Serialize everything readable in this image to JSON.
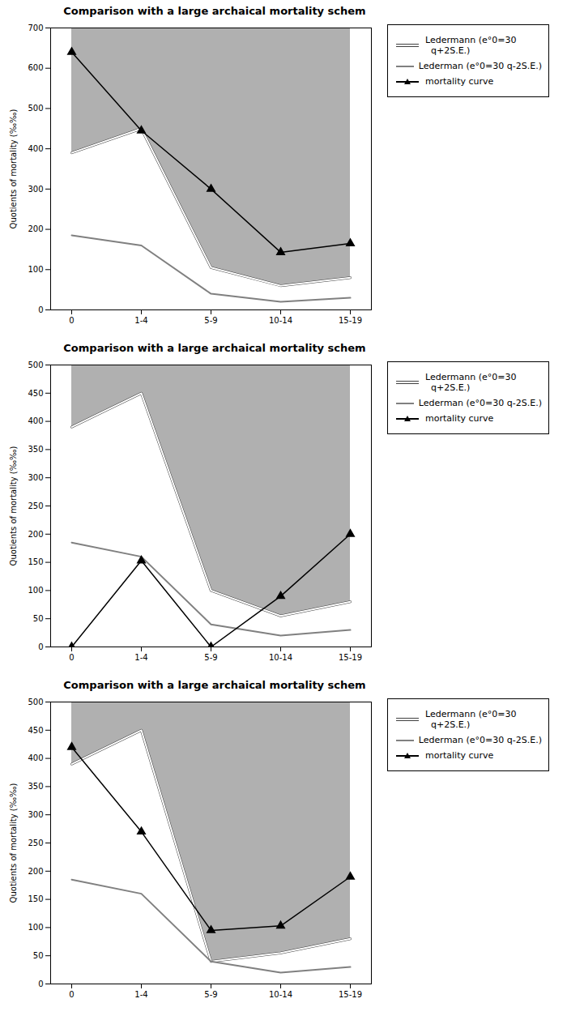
{
  "chart_data": [
    {
      "type": "line",
      "title": "Comparison with a large archaical mortality schem",
      "ylabel": "Quotients of mortality (‰‰)",
      "categories": [
        "0",
        "1-4",
        "5-9",
        "10-14",
        "15-19"
      ],
      "ylim": [
        0,
        700
      ],
      "yticks": [
        0,
        100,
        200,
        300,
        400,
        500,
        600,
        700
      ],
      "grid": false,
      "legend": "right",
      "color": "#b0b0b0",
      "series": [
        {
          "name": "Ledermann (e°0=30\n  q+2S.E.)",
          "type": "area",
          "color": "#ffffff",
          "values": [
            390,
            450,
            105,
            60,
            80
          ]
        },
        {
          "name": "Lederman (e°0=30 q-2S.E.)",
          "type": "line",
          "color": "#808080",
          "values": [
            185,
            160,
            40,
            20,
            30
          ]
        },
        {
          "name": "mortality curve",
          "type": "line",
          "color": "#000000",
          "marker": "triangle",
          "values": [
            640,
            445,
            300,
            143,
            165
          ]
        }
      ]
    },
    {
      "type": "line",
      "title": "Comparison with a large archaical mortality schem",
      "ylabel": "Quotients of mortality (‰‰)",
      "categories": [
        "0",
        "1-4",
        "5-9",
        "10-14",
        "15-19"
      ],
      "ylim": [
        0,
        500
      ],
      "yticks": [
        0,
        50,
        100,
        150,
        200,
        250,
        300,
        350,
        400,
        450,
        500
      ],
      "grid": false,
      "legend": "right",
      "color": "#b0b0b0",
      "series": [
        {
          "name": "Ledermann (e°0=30\n  q+2S.E.)",
          "type": "area",
          "color": "#ffffff",
          "values": [
            390,
            450,
            100,
            55,
            80
          ]
        },
        {
          "name": "Lederman (e°0=30 q-2S.E.)",
          "type": "line",
          "color": "#808080",
          "values": [
            185,
            160,
            40,
            20,
            30
          ]
        },
        {
          "name": "mortality curve",
          "type": "line",
          "color": "#000000",
          "marker": "triangle",
          "values": [
            0,
            153,
            0,
            90,
            200
          ]
        }
      ]
    },
    {
      "type": "line",
      "title": "Comparison with a large archaical mortality schem",
      "ylabel": "Quotients of mortality (‰‰)",
      "categories": [
        "0",
        "1-4",
        "5-9",
        "10-14",
        "15-19"
      ],
      "ylim": [
        0,
        500
      ],
      "yticks": [
        0,
        50,
        100,
        150,
        200,
        250,
        300,
        350,
        400,
        450,
        500
      ],
      "grid": false,
      "legend": "right",
      "color": "#b0b0b0",
      "series": [
        {
          "name": "Ledermann (e°0=30\n  q+2S.E.)",
          "type": "area",
          "color": "#ffffff",
          "values": [
            390,
            450,
            40,
            55,
            80
          ]
        },
        {
          "name": "Lederman (e°0=30 q-2S.E.)",
          "type": "line",
          "color": "#808080",
          "values": [
            185,
            160,
            40,
            20,
            30
          ]
        },
        {
          "name": "mortality curve",
          "type": "line",
          "color": "#000000",
          "marker": "triangle",
          "values": [
            420,
            270,
            95,
            103,
            190
          ]
        }
      ]
    }
  ]
}
